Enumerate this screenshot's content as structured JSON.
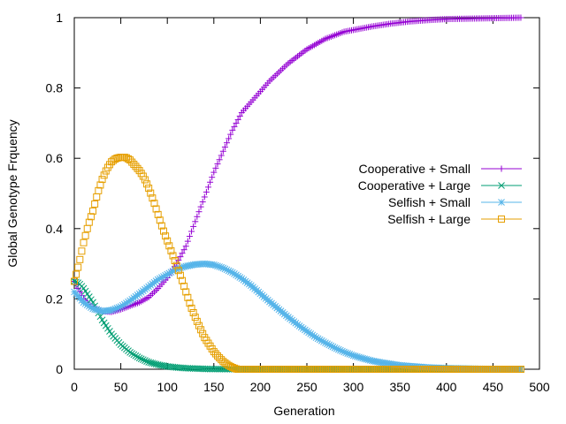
{
  "chart_data": {
    "type": "scatter",
    "title": "",
    "xlabel": "Generation",
    "ylabel": "Global Genotype Frquency",
    "xlim": [
      0,
      500
    ],
    "ylim": [
      0,
      1
    ],
    "xticks": [
      "0",
      "50",
      "100",
      "150",
      "200",
      "250",
      "300",
      "350",
      "400",
      "450",
      "500"
    ],
    "yticks": [
      "0",
      "0.2",
      "0.4",
      "0.6",
      "0.8",
      "1"
    ],
    "grid": false,
    "legend_position": "right",
    "series": [
      {
        "name": "Cooperative + Small",
        "color": "#9400d3",
        "marker": "plus",
        "points": [
          [
            0,
            0.25
          ],
          [
            10,
            0.2
          ],
          [
            20,
            0.175
          ],
          [
            30,
            0.165
          ],
          [
            40,
            0.163
          ],
          [
            50,
            0.17
          ],
          [
            60,
            0.18
          ],
          [
            70,
            0.19
          ],
          [
            80,
            0.205
          ],
          [
            90,
            0.23
          ],
          [
            100,
            0.26
          ],
          [
            110,
            0.3
          ],
          [
            120,
            0.35
          ],
          [
            130,
            0.42
          ],
          [
            140,
            0.49
          ],
          [
            150,
            0.56
          ],
          [
            160,
            0.62
          ],
          [
            170,
            0.68
          ],
          [
            180,
            0.73
          ],
          [
            190,
            0.76
          ],
          [
            200,
            0.79
          ],
          [
            210,
            0.82
          ],
          [
            220,
            0.845
          ],
          [
            230,
            0.87
          ],
          [
            240,
            0.89
          ],
          [
            250,
            0.91
          ],
          [
            260,
            0.925
          ],
          [
            270,
            0.94
          ],
          [
            280,
            0.95
          ],
          [
            290,
            0.96
          ],
          [
            300,
            0.965
          ],
          [
            320,
            0.975
          ],
          [
            340,
            0.983
          ],
          [
            360,
            0.989
          ],
          [
            380,
            0.993
          ],
          [
            400,
            0.996
          ],
          [
            420,
            0.997
          ],
          [
            440,
            0.998
          ],
          [
            460,
            0.999
          ],
          [
            480,
            1.0
          ]
        ]
      },
      {
        "name": "Cooperative + Large",
        "color": "#009e73",
        "marker": "cross",
        "points": [
          [
            0,
            0.25
          ],
          [
            5,
            0.245
          ],
          [
            10,
            0.23
          ],
          [
            20,
            0.19
          ],
          [
            30,
            0.14
          ],
          [
            40,
            0.1
          ],
          [
            50,
            0.07
          ],
          [
            60,
            0.048
          ],
          [
            70,
            0.032
          ],
          [
            80,
            0.02
          ],
          [
            90,
            0.013
          ],
          [
            100,
            0.008
          ],
          [
            110,
            0.005
          ],
          [
            120,
            0.003
          ],
          [
            130,
            0.002
          ],
          [
            140,
            0.001
          ],
          [
            150,
            0.0005
          ],
          [
            160,
            0.0003
          ],
          [
            170,
            0.0002
          ],
          [
            200,
            0.0
          ],
          [
            250,
            0.0
          ],
          [
            300,
            0.0
          ],
          [
            350,
            0.0
          ],
          [
            400,
            0.0
          ],
          [
            450,
            0.0
          ],
          [
            480,
            0.0
          ]
        ]
      },
      {
        "name": "Selfish + Small",
        "color": "#56b4e9",
        "marker": "star",
        "points": [
          [
            0,
            0.22
          ],
          [
            10,
            0.19
          ],
          [
            20,
            0.172
          ],
          [
            30,
            0.165
          ],
          [
            40,
            0.168
          ],
          [
            50,
            0.178
          ],
          [
            60,
            0.195
          ],
          [
            70,
            0.215
          ],
          [
            80,
            0.235
          ],
          [
            90,
            0.255
          ],
          [
            100,
            0.27
          ],
          [
            110,
            0.285
          ],
          [
            120,
            0.293
          ],
          [
            130,
            0.298
          ],
          [
            140,
            0.3
          ],
          [
            150,
            0.297
          ],
          [
            160,
            0.288
          ],
          [
            170,
            0.275
          ],
          [
            180,
            0.258
          ],
          [
            190,
            0.238
          ],
          [
            200,
            0.215
          ],
          [
            210,
            0.192
          ],
          [
            220,
            0.17
          ],
          [
            230,
            0.148
          ],
          [
            240,
            0.127
          ],
          [
            250,
            0.108
          ],
          [
            260,
            0.09
          ],
          [
            270,
            0.075
          ],
          [
            280,
            0.061
          ],
          [
            290,
            0.049
          ],
          [
            300,
            0.039
          ],
          [
            310,
            0.031
          ],
          [
            320,
            0.024
          ],
          [
            330,
            0.019
          ],
          [
            340,
            0.015
          ],
          [
            350,
            0.011
          ],
          [
            360,
            0.009
          ],
          [
            380,
            0.005
          ],
          [
            400,
            0.003
          ],
          [
            420,
            0.002
          ],
          [
            440,
            0.001
          ],
          [
            460,
            0.0005
          ],
          [
            480,
            0.0
          ]
        ]
      },
      {
        "name": "Selfish + Large",
        "color": "#e69f00",
        "marker": "square",
        "points": [
          [
            0,
            0.25
          ],
          [
            5,
            0.3
          ],
          [
            10,
            0.36
          ],
          [
            15,
            0.41
          ],
          [
            20,
            0.45
          ],
          [
            25,
            0.5
          ],
          [
            30,
            0.54
          ],
          [
            35,
            0.57
          ],
          [
            40,
            0.59
          ],
          [
            45,
            0.6
          ],
          [
            50,
            0.603
          ],
          [
            55,
            0.603
          ],
          [
            60,
            0.595
          ],
          [
            65,
            0.58
          ],
          [
            70,
            0.565
          ],
          [
            75,
            0.545
          ],
          [
            80,
            0.515
          ],
          [
            85,
            0.48
          ],
          [
            90,
            0.44
          ],
          [
            95,
            0.4
          ],
          [
            100,
            0.365
          ],
          [
            105,
            0.33
          ],
          [
            110,
            0.295
          ],
          [
            115,
            0.26
          ],
          [
            120,
            0.22
          ],
          [
            125,
            0.18
          ],
          [
            130,
            0.148
          ],
          [
            135,
            0.118
          ],
          [
            140,
            0.09
          ],
          [
            145,
            0.07
          ],
          [
            150,
            0.05
          ],
          [
            155,
            0.035
          ],
          [
            160,
            0.022
          ],
          [
            165,
            0.012
          ],
          [
            170,
            0.005
          ],
          [
            175,
            0.0
          ],
          [
            200,
            0.0
          ],
          [
            250,
            0.0
          ],
          [
            300,
            0.0
          ],
          [
            350,
            0.0
          ],
          [
            400,
            0.0
          ],
          [
            450,
            0.0
          ],
          [
            480,
            0.0
          ]
        ]
      }
    ]
  }
}
